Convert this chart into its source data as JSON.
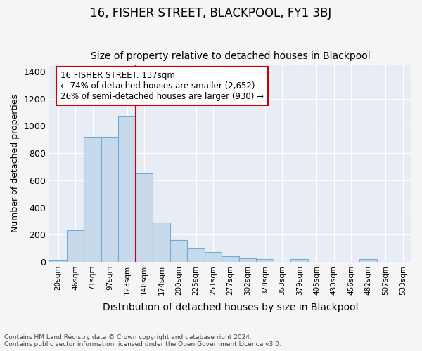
{
  "title1": "16, FISHER STREET, BLACKPOOL, FY1 3BJ",
  "title2": "Size of property relative to detached houses in Blackpool",
  "xlabel": "Distribution of detached houses by size in Blackpool",
  "ylabel": "Number of detached properties",
  "categories": [
    "20sqm",
    "46sqm",
    "71sqm",
    "97sqm",
    "123sqm",
    "148sqm",
    "174sqm",
    "200sqm",
    "225sqm",
    "251sqm",
    "277sqm",
    "302sqm",
    "328sqm",
    "353sqm",
    "379sqm",
    "405sqm",
    "430sqm",
    "456sqm",
    "482sqm",
    "507sqm",
    "533sqm"
  ],
  "values": [
    10,
    230,
    920,
    920,
    1075,
    650,
    290,
    160,
    105,
    70,
    40,
    25,
    20,
    0,
    20,
    0,
    0,
    0,
    20,
    0,
    0
  ],
  "bar_color": "#c9d9ec",
  "bar_edge_color": "#6baed6",
  "vline_color": "#cc0000",
  "annotation_text": "16 FISHER STREET: 137sqm\n← 74% of detached houses are smaller (2,652)\n26% of semi-detached houses are larger (930) →",
  "annotation_box_facecolor": "#ffffff",
  "annotation_box_edgecolor": "#cc0000",
  "ylim": [
    0,
    1450
  ],
  "yticks": [
    0,
    200,
    400,
    600,
    800,
    1000,
    1200,
    1400
  ],
  "footer1": "Contains HM Land Registry data © Crown copyright and database right 2024.",
  "footer2": "Contains public sector information licensed under the Open Government Licence v3.0.",
  "bg_color": "#f5f5f5",
  "plot_bg_color": "#e8edf5",
  "grid_color": "#ffffff",
  "title1_fontsize": 12,
  "title2_fontsize": 10,
  "xlabel_fontsize": 10,
  "ylabel_fontsize": 9
}
